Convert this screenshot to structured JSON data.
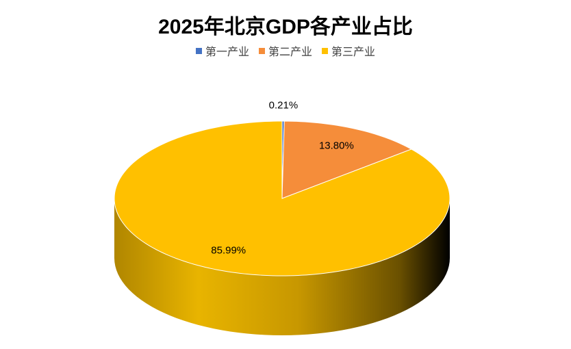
{
  "chart_data": {
    "type": "pie3d",
    "title": "2025年北京GDP各产业占比",
    "categories": [
      "第一产业",
      "第二产业",
      "第三产业"
    ],
    "values": [
      0.21,
      13.8,
      85.99
    ],
    "value_labels": [
      "0.21%",
      "13.80%",
      "85.99%"
    ],
    "colors": [
      "#4472c4",
      "#f58d3a",
      "#ffc000"
    ],
    "legend": "top"
  }
}
